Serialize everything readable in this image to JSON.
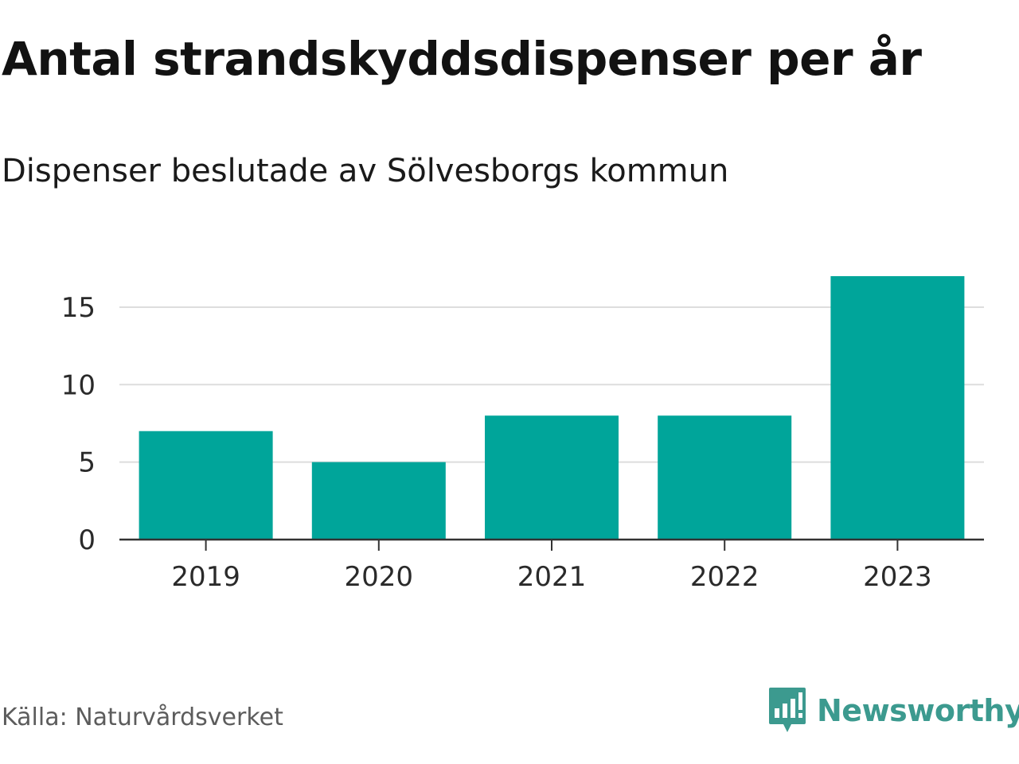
{
  "header": {
    "title": "Antal strandskyddsdispenser per år",
    "subtitle": "Dispenser beslutade av Sölvesborgs kommun"
  },
  "footer": {
    "source": "Källa: Naturvårdsverket",
    "brand": "Newsworthy",
    "brand_icon": "newsworthy-logo-icon"
  },
  "colors": {
    "bar": "#00a59a",
    "grid": "#dddddd",
    "axis": "#333333",
    "brand": "#3c9a8f"
  },
  "chart_data": {
    "type": "bar",
    "title": "Antal strandskyddsdispenser per år",
    "subtitle": "Dispenser beslutade av Sölvesborgs kommun",
    "categories": [
      "2019",
      "2020",
      "2021",
      "2022",
      "2023"
    ],
    "values": [
      7,
      5,
      8,
      8,
      17
    ],
    "yticks": [
      0,
      5,
      10,
      15
    ],
    "ylim": [
      0,
      17
    ],
    "xlabel": "",
    "ylabel": "",
    "grid": true
  }
}
